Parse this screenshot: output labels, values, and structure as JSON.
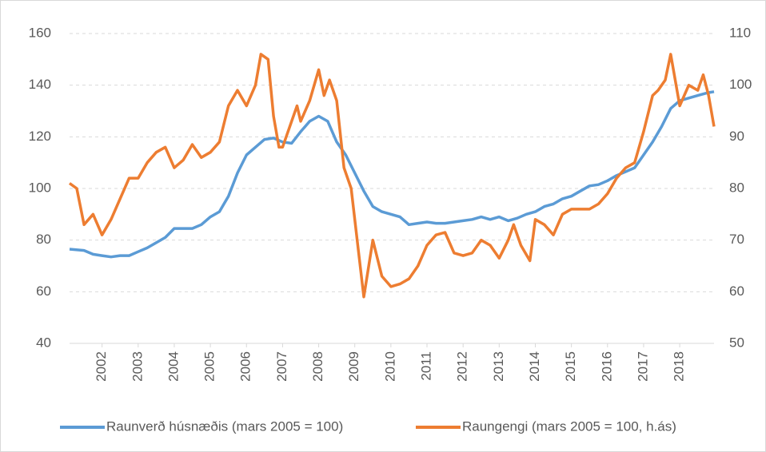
{
  "chart_data": {
    "type": "line",
    "xlim": [
      2001.1,
      2018.95
    ],
    "xticks": [
      2002,
      2003,
      2004,
      2005,
      2006,
      2007,
      2008,
      2009,
      2010,
      2011,
      2012,
      2013,
      2014,
      2015,
      2016,
      2017,
      2018
    ],
    "ylim": [
      40,
      160
    ],
    "yticks": [
      40,
      60,
      80,
      100,
      120,
      140,
      160
    ],
    "y2lim": [
      50,
      110
    ],
    "y2ticks": [
      50,
      60,
      70,
      80,
      90,
      100,
      110
    ],
    "grid": true,
    "legend": "bottom",
    "series": [
      {
        "name": "Raunverð húsnæðis (mars 2005 = 100)",
        "color": "#5b9bd5",
        "x": [
          2001.1,
          2001.5,
          2001.75,
          2002,
          2002.25,
          2002.5,
          2002.75,
          2003,
          2003.25,
          2003.5,
          2003.75,
          2004,
          2004.25,
          2004.5,
          2004.75,
          2005,
          2005.25,
          2005.5,
          2005.75,
          2006,
          2006.25,
          2006.5,
          2006.75,
          2007,
          2007.25,
          2007.5,
          2007.75,
          2008,
          2008.25,
          2008.5,
          2008.75,
          2009,
          2009.25,
          2009.5,
          2009.75,
          2010,
          2010.25,
          2010.5,
          2010.75,
          2011,
          2011.25,
          2011.5,
          2011.75,
          2012,
          2012.25,
          2012.5,
          2012.75,
          2013,
          2013.25,
          2013.5,
          2013.75,
          2014,
          2014.25,
          2014.5,
          2014.75,
          2015,
          2015.25,
          2015.5,
          2015.75,
          2016,
          2016.25,
          2016.5,
          2016.75,
          2017,
          2017.25,
          2017.5,
          2017.75,
          2018,
          2018.25,
          2018.5,
          2018.75,
          2018.95
        ],
        "values": [
          76.5,
          76,
          74.5,
          74,
          73.5,
          74,
          74,
          75.5,
          77,
          79,
          81,
          84.5,
          84.5,
          84.5,
          86,
          89,
          91,
          97,
          106,
          113,
          116,
          119,
          119.5,
          118,
          117.5,
          122,
          126,
          128,
          126,
          118,
          113,
          106,
          99,
          93,
          91,
          90,
          89,
          86,
          86.5,
          87,
          86.5,
          86.5,
          87,
          87.5,
          88,
          89,
          88,
          89,
          87.5,
          88.5,
          90,
          91,
          93,
          94,
          96,
          97,
          99,
          101,
          101.5,
          103,
          105,
          106.5,
          108,
          113,
          118,
          124,
          131,
          134,
          135,
          136,
          137,
          137.5
        ]
      },
      {
        "name": "Raungengi (mars 2005 = 100, h.ás)",
        "color": "#ed7d31",
        "axis": "y2",
        "x": [
          2001.1,
          2001.3,
          2001.5,
          2001.75,
          2002,
          2002.25,
          2002.5,
          2002.75,
          2003,
          2003.25,
          2003.5,
          2003.75,
          2004,
          2004.25,
          2004.5,
          2004.75,
          2005,
          2005.25,
          2005.5,
          2005.75,
          2006,
          2006.25,
          2006.4,
          2006.6,
          2006.75,
          2006.9,
          2007,
          2007.25,
          2007.4,
          2007.5,
          2007.75,
          2008,
          2008.15,
          2008.3,
          2008.5,
          2008.7,
          2008.9,
          2009.1,
          2009.25,
          2009.5,
          2009.75,
          2010,
          2010.25,
          2010.5,
          2010.75,
          2011,
          2011.25,
          2011.5,
          2011.75,
          2012,
          2012.25,
          2012.5,
          2012.75,
          2013,
          2013.25,
          2013.4,
          2013.6,
          2013.85,
          2014,
          2014.25,
          2014.5,
          2014.75,
          2015,
          2015.25,
          2015.5,
          2015.75,
          2016,
          2016.25,
          2016.5,
          2016.75,
          2017,
          2017.25,
          2017.4,
          2017.6,
          2017.75,
          2017.9,
          2018,
          2018.25,
          2018.5,
          2018.65,
          2018.8,
          2018.95
        ],
        "values": [
          81,
          80,
          73,
          75,
          71,
          74,
          78,
          82,
          82,
          85,
          87,
          88,
          84,
          85.5,
          88.5,
          86,
          87,
          89,
          96,
          99,
          96,
          100,
          106,
          105,
          94,
          88,
          88,
          93,
          96,
          93,
          97,
          103,
          98,
          101,
          97,
          84,
          80,
          68,
          59,
          70,
          63,
          61,
          61.5,
          62.5,
          65,
          69,
          71,
          71.5,
          67.5,
          67,
          67.5,
          70,
          69,
          66.5,
          70,
          73,
          69,
          66,
          74,
          73,
          71,
          75,
          76,
          76,
          76,
          77,
          79,
          82,
          84,
          85,
          91,
          98,
          99,
          101,
          106,
          100,
          96,
          100,
          99,
          102,
          98,
          92
        ]
      }
    ]
  }
}
